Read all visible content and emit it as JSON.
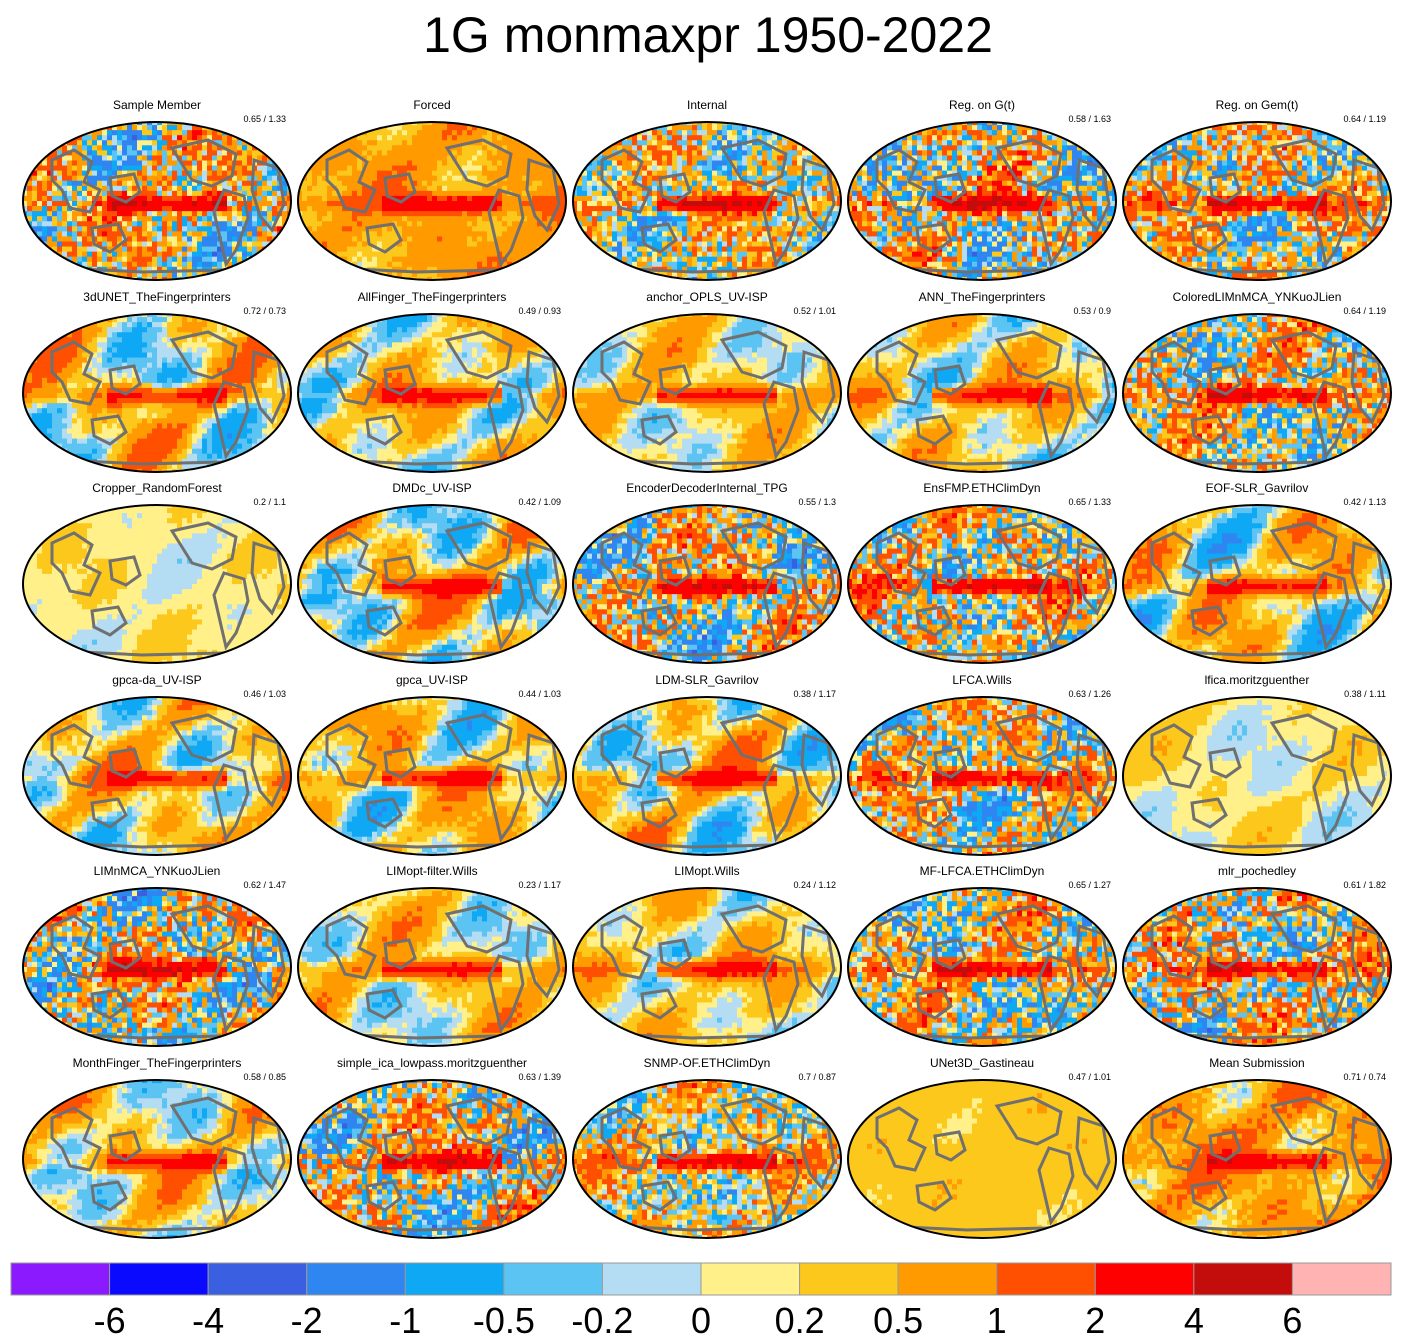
{
  "chart_data": {
    "type": "heatmap",
    "title": "1G monmaxpr 1950-2022",
    "projection": "global map grid",
    "panels": [
      {
        "title": "Sample Member",
        "stats": "0.65 / 1.33",
        "style": "noisy",
        "amp": 1.45
      },
      {
        "title": "Forced",
        "stats": "",
        "style": "warm",
        "amp": 0.7
      },
      {
        "title": "Internal",
        "stats": "",
        "style": "noisy",
        "amp": 1.2
      },
      {
        "title": "Reg. on G(t)",
        "stats": "0.58 / 1.63",
        "style": "noisy",
        "amp": 1.6
      },
      {
        "title": "Reg. on Gem(t)",
        "stats": "0.64 / 1.19",
        "style": "noisy",
        "amp": 1.4
      },
      {
        "title": "3dUNET_TheFingerprinters",
        "stats": "0.72 / 0.73",
        "style": "smooth",
        "amp": 1.0
      },
      {
        "title": "AllFinger_TheFingerprinters",
        "stats": "0.49 / 0.93",
        "style": "smooth",
        "amp": 0.8
      },
      {
        "title": "anchor_OPLS_UV-ISP",
        "stats": "0.52 / 1.01",
        "style": "smooth",
        "amp": 0.6
      },
      {
        "title": "ANN_TheFingerprinters",
        "stats": "0.53 / 0.9",
        "style": "smooth",
        "amp": 0.8
      },
      {
        "title": "ColoredLIMnMCA_YNKuoJLien",
        "stats": "0.64 / 1.19",
        "style": "noisy",
        "amp": 1.4
      },
      {
        "title": "Cropper_RandomForest",
        "stats": "0.2 / 1.1",
        "style": "pale",
        "amp": 0.25
      },
      {
        "title": "DMDc_UV-ISP",
        "stats": "0.42 / 1.09",
        "style": "smooth",
        "amp": 1.1
      },
      {
        "title": "EncoderDecoderInternal_TPG",
        "stats": "0.55 / 1.3",
        "style": "noisy",
        "amp": 1.5
      },
      {
        "title": "EnsFMP.ETHClimDyn",
        "stats": "0.65 / 1.33",
        "style": "noisy",
        "amp": 1.45
      },
      {
        "title": "EOF-SLR_Gavrilov",
        "stats": "0.42 / 1.13",
        "style": "smooth",
        "amp": 1.0
      },
      {
        "title": "gpca-da_UV-ISP",
        "stats": "0.46 / 1.03",
        "style": "smooth",
        "amp": 0.9
      },
      {
        "title": "gpca_UV-ISP",
        "stats": "0.44 / 1.03",
        "style": "smooth",
        "amp": 0.9
      },
      {
        "title": "LDM-SLR_Gavrilov",
        "stats": "0.38 / 1.17",
        "style": "smooth",
        "amp": 1.1
      },
      {
        "title": "LFCA.Wills",
        "stats": "0.63 / 1.26",
        "style": "noisy",
        "amp": 1.4
      },
      {
        "title": "lfica.moritzguenther",
        "stats": "0.38 / 1.11",
        "style": "pale",
        "amp": 0.35
      },
      {
        "title": "LIMnMCA_YNKuoJLien",
        "stats": "0.62 / 1.47",
        "style": "noisy",
        "amp": 1.5
      },
      {
        "title": "LIMopt-filter.Wills",
        "stats": "0.23 / 1.17",
        "style": "smooth",
        "amp": 0.7
      },
      {
        "title": "LIMopt.Wills",
        "stats": "0.24 / 1.12",
        "style": "smooth",
        "amp": 0.7
      },
      {
        "title": "MF-LFCA.ETHClimDyn",
        "stats": "0.65 / 1.27",
        "style": "noisy",
        "amp": 1.4
      },
      {
        "title": "mlr_pochedley",
        "stats": "0.61 / 1.82",
        "style": "noisy",
        "amp": 1.6
      },
      {
        "title": "MonthFinger_TheFingerprinters",
        "stats": "0.58 / 0.85",
        "style": "smooth",
        "amp": 0.8
      },
      {
        "title": "simple_ica_lowpass.moritzguenther",
        "stats": "0.63 / 1.39",
        "style": "noisy",
        "amp": 1.5
      },
      {
        "title": "SNMP-OF.ETHClimDyn",
        "stats": "0.7 / 0.87",
        "style": "noisy",
        "amp": 1.1
      },
      {
        "title": "UNet3D_Gastineau",
        "stats": "0.47 / 1.01",
        "style": "uniform",
        "amp": 0.3
      },
      {
        "title": "Mean Submission",
        "stats": "0.71 / 0.74",
        "style": "warm",
        "amp": 1.0
      }
    ],
    "colorbar": {
      "levels": [
        -6,
        -4,
        -2,
        -1,
        -0.5,
        -0.2,
        0,
        0.2,
        0.5,
        1,
        2,
        4,
        6
      ],
      "tick_labels": [
        "-6",
        "-4",
        "-2",
        "-1",
        "-0.5",
        "-0.2",
        "0",
        "0.2",
        "0.5",
        "1",
        "2",
        "4",
        "6"
      ],
      "colors": [
        "#8b1aff",
        "#0a0aff",
        "#3a5fe0",
        "#2f86f0",
        "#0fa8f5",
        "#5cc4f2",
        "#b4dcf2",
        "#fff08a",
        "#fcc81c",
        "#ff9a00",
        "#ff4f00",
        "#ff0000",
        "#c30c0c",
        "#ffb3b3"
      ]
    }
  }
}
